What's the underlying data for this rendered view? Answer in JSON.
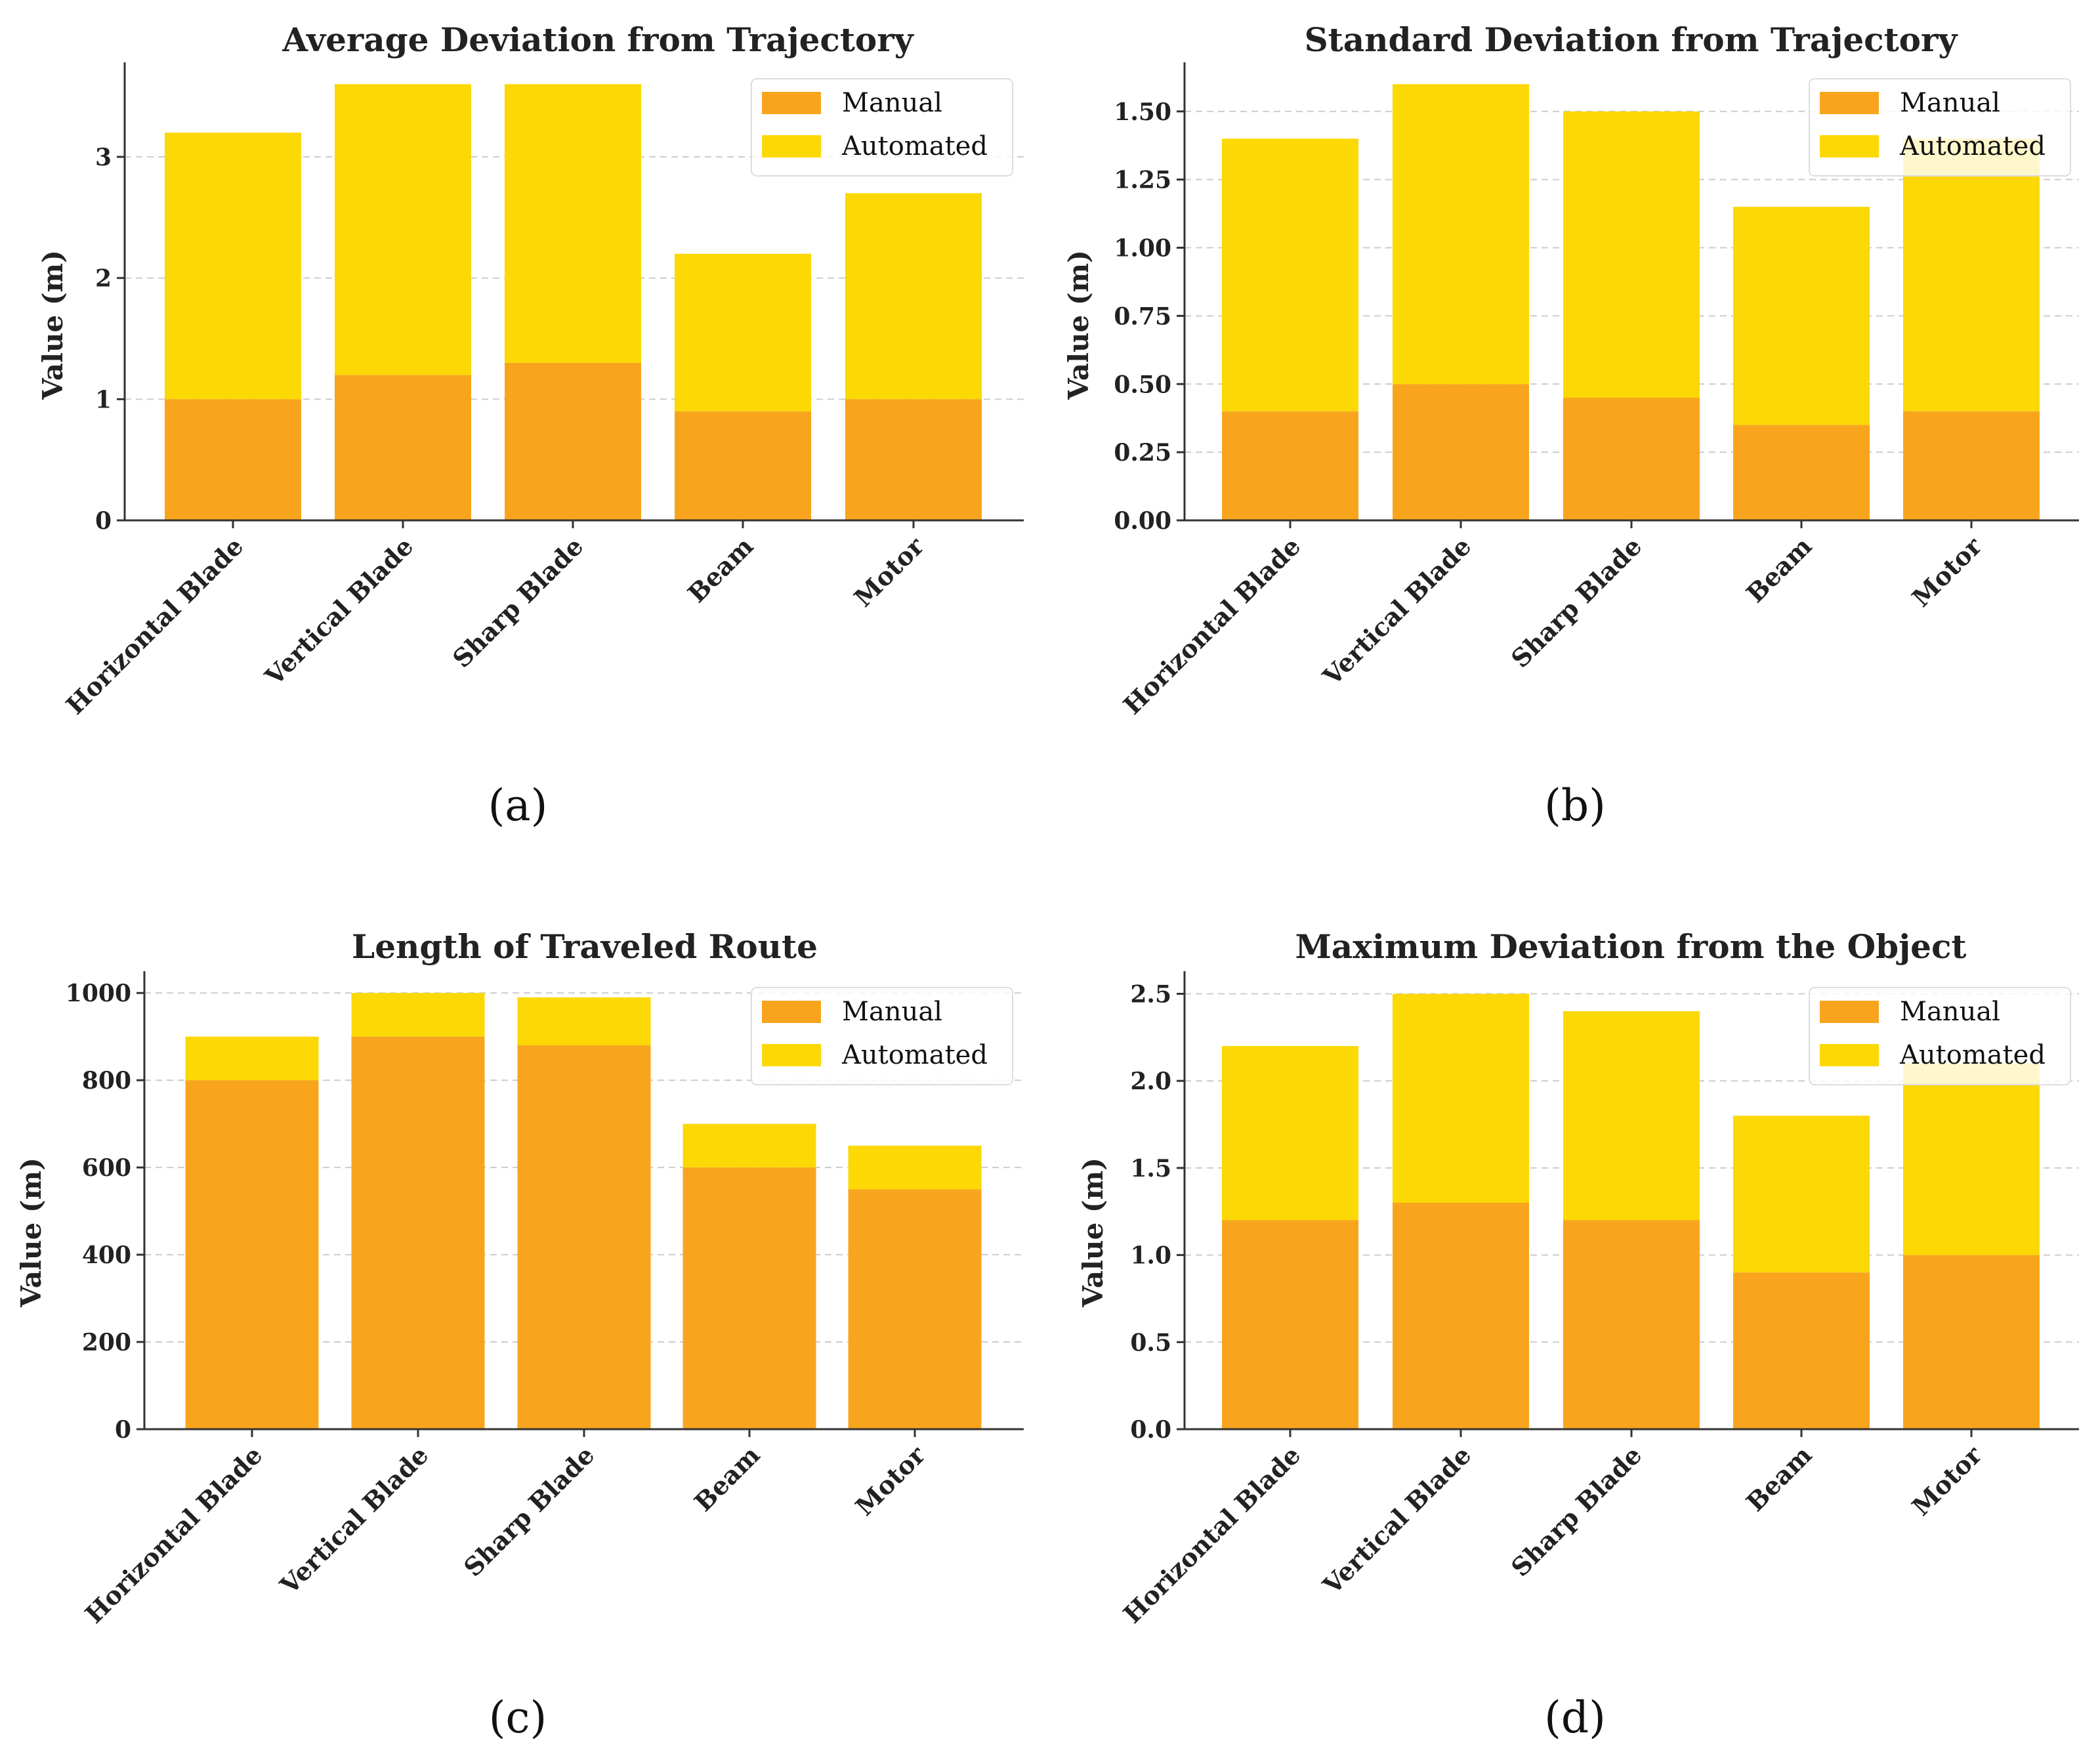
{
  "colors": {
    "manual": "#F8A51D",
    "automated": "#FCD804",
    "grid": "#CCCCCC",
    "axis": "#333333"
  },
  "chart_data": [
    {
      "type": "bar",
      "stacked": true,
      "title": "Average Deviation from Trajectory",
      "ylabel": "Value (m)",
      "xlabel": "",
      "categories": [
        "Horizontal Blade",
        "Vertical Blade",
        "Sharp Blade",
        "Beam",
        "Motor"
      ],
      "series": [
        {
          "name": "Manual",
          "values": [
            1.0,
            1.2,
            1.3,
            0.9,
            1.0
          ]
        },
        {
          "name": "Automated",
          "values": [
            2.2,
            2.4,
            2.3,
            1.3,
            1.7
          ]
        }
      ],
      "ylim": [
        0,
        3.78
      ],
      "yticks": [
        0,
        1,
        2,
        3
      ],
      "ytick_labels": [
        "0",
        "1",
        "2",
        "3"
      ],
      "grid": "y-dashed",
      "legend": "top-right",
      "panel_label": "(a)"
    },
    {
      "type": "bar",
      "stacked": true,
      "title": "Standard Deviation from Trajectory",
      "ylabel": "Value (m)",
      "xlabel": "",
      "categories": [
        "Horizontal Blade",
        "Vertical Blade",
        "Sharp Blade",
        "Beam",
        "Motor"
      ],
      "series": [
        {
          "name": "Manual",
          "values": [
            0.4,
            0.5,
            0.45,
            0.35,
            0.4
          ]
        },
        {
          "name": "Automated",
          "values": [
            1.0,
            1.1,
            1.05,
            0.8,
            1.0
          ]
        }
      ],
      "ylim": [
        0,
        1.68
      ],
      "yticks": [
        0,
        0.25,
        0.5,
        0.75,
        1.0,
        1.25,
        1.5
      ],
      "ytick_labels": [
        "0.00",
        "0.25",
        "0.50",
        "0.75",
        "1.00",
        "1.25",
        "1.50"
      ],
      "grid": "y-dashed",
      "legend": "top-right",
      "panel_label": "(b)"
    },
    {
      "type": "bar",
      "stacked": true,
      "title": "Length of Traveled Route",
      "ylabel": "Value (m)",
      "xlabel": "",
      "categories": [
        "Horizontal Blade",
        "Vertical Blade",
        "Sharp Blade",
        "Beam",
        "Motor"
      ],
      "series": [
        {
          "name": "Manual",
          "values": [
            800,
            900,
            880,
            600,
            550
          ]
        },
        {
          "name": "Automated",
          "values": [
            100,
            100,
            110,
            100,
            100
          ]
        }
      ],
      "ylim": [
        0,
        1050
      ],
      "yticks": [
        0,
        200,
        400,
        600,
        800,
        1000
      ],
      "ytick_labels": [
        "0",
        "200",
        "400",
        "600",
        "800",
        "1000"
      ],
      "grid": "y-dashed",
      "legend": "top-right",
      "panel_label": "(c)"
    },
    {
      "type": "bar",
      "stacked": true,
      "title": "Maximum Deviation from the Object",
      "ylabel": "Value (m)",
      "xlabel": "",
      "categories": [
        "Horizontal Blade",
        "Vertical Blade",
        "Sharp Blade",
        "Beam",
        "Motor"
      ],
      "series": [
        {
          "name": "Manual",
          "values": [
            1.2,
            1.3,
            1.2,
            0.9,
            1.0
          ]
        },
        {
          "name": "Automated",
          "values": [
            1.0,
            1.2,
            1.2,
            0.9,
            1.1
          ]
        }
      ],
      "ylim": [
        0,
        2.63
      ],
      "yticks": [
        0,
        0.5,
        1.0,
        1.5,
        2.0,
        2.5
      ],
      "ytick_labels": [
        "0.0",
        "0.5",
        "1.0",
        "1.5",
        "2.0",
        "2.5"
      ],
      "grid": "y-dashed",
      "legend": "top-right",
      "panel_label": "(d)"
    }
  ]
}
